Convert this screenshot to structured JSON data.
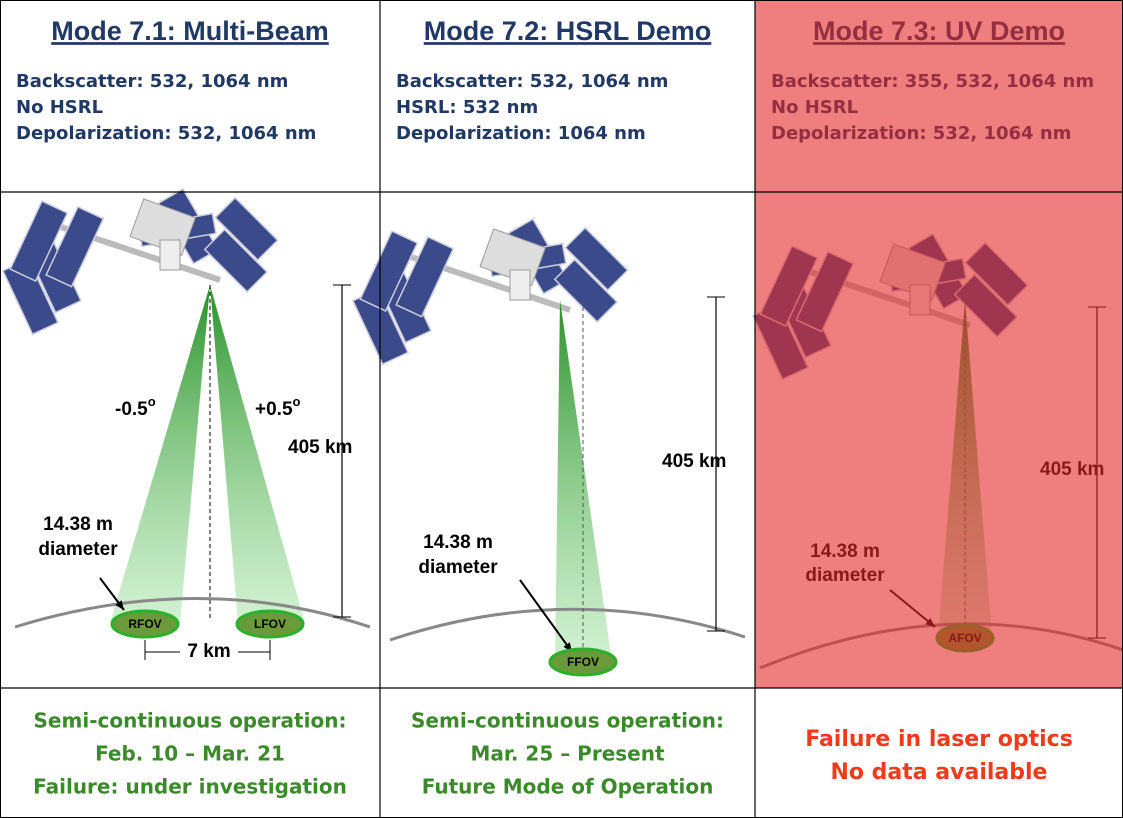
{
  "columns": [
    {
      "title": "Mode 7.1: Multi-Beam",
      "specs": [
        "Backscatter: 532, 1064 nm",
        "No HSRL",
        "Depolarization: 532, 1064 nm"
      ],
      "diagram": {
        "angles": [
          {
            "text": "-0.5",
            "sup": "o"
          },
          {
            "text": "+0.5",
            "sup": "o"
          }
        ],
        "altitude": "405 km",
        "footprint": [
          "14.38 m",
          "diameter"
        ],
        "fovs": [
          "RFOV",
          "LFOV"
        ],
        "separation": "7 km"
      },
      "status": [
        "Semi-continuous operation:",
        "Feb. 10 – Mar. 21",
        "Failure: under investigation"
      ]
    },
    {
      "title": "Mode 7.2: HSRL Demo",
      "specs": [
        "Backscatter: 532, 1064 nm",
        "HSRL: 532 nm",
        "Depolarization: 1064 nm"
      ],
      "diagram": {
        "altitude": "405 km",
        "footprint": [
          "14.38 m",
          "diameter"
        ],
        "fovs": [
          "FFOV"
        ]
      },
      "status": [
        "Semi-continuous operation:",
        "Mar. 25 – Present",
        "Future Mode of Operation"
      ]
    },
    {
      "title": "Mode 7.3: UV Demo",
      "specs": [
        "Backscatter: 355, 532, 1064 nm",
        "No HSRL",
        "Depolarization: 532, 1064 nm"
      ],
      "diagram": {
        "altitude": "405 km",
        "footprint": [
          "14.38 m",
          "diameter"
        ],
        "fovs": [
          "AFOV"
        ]
      },
      "status": [
        "Failure in laser optics",
        "No data available"
      ]
    }
  ]
}
